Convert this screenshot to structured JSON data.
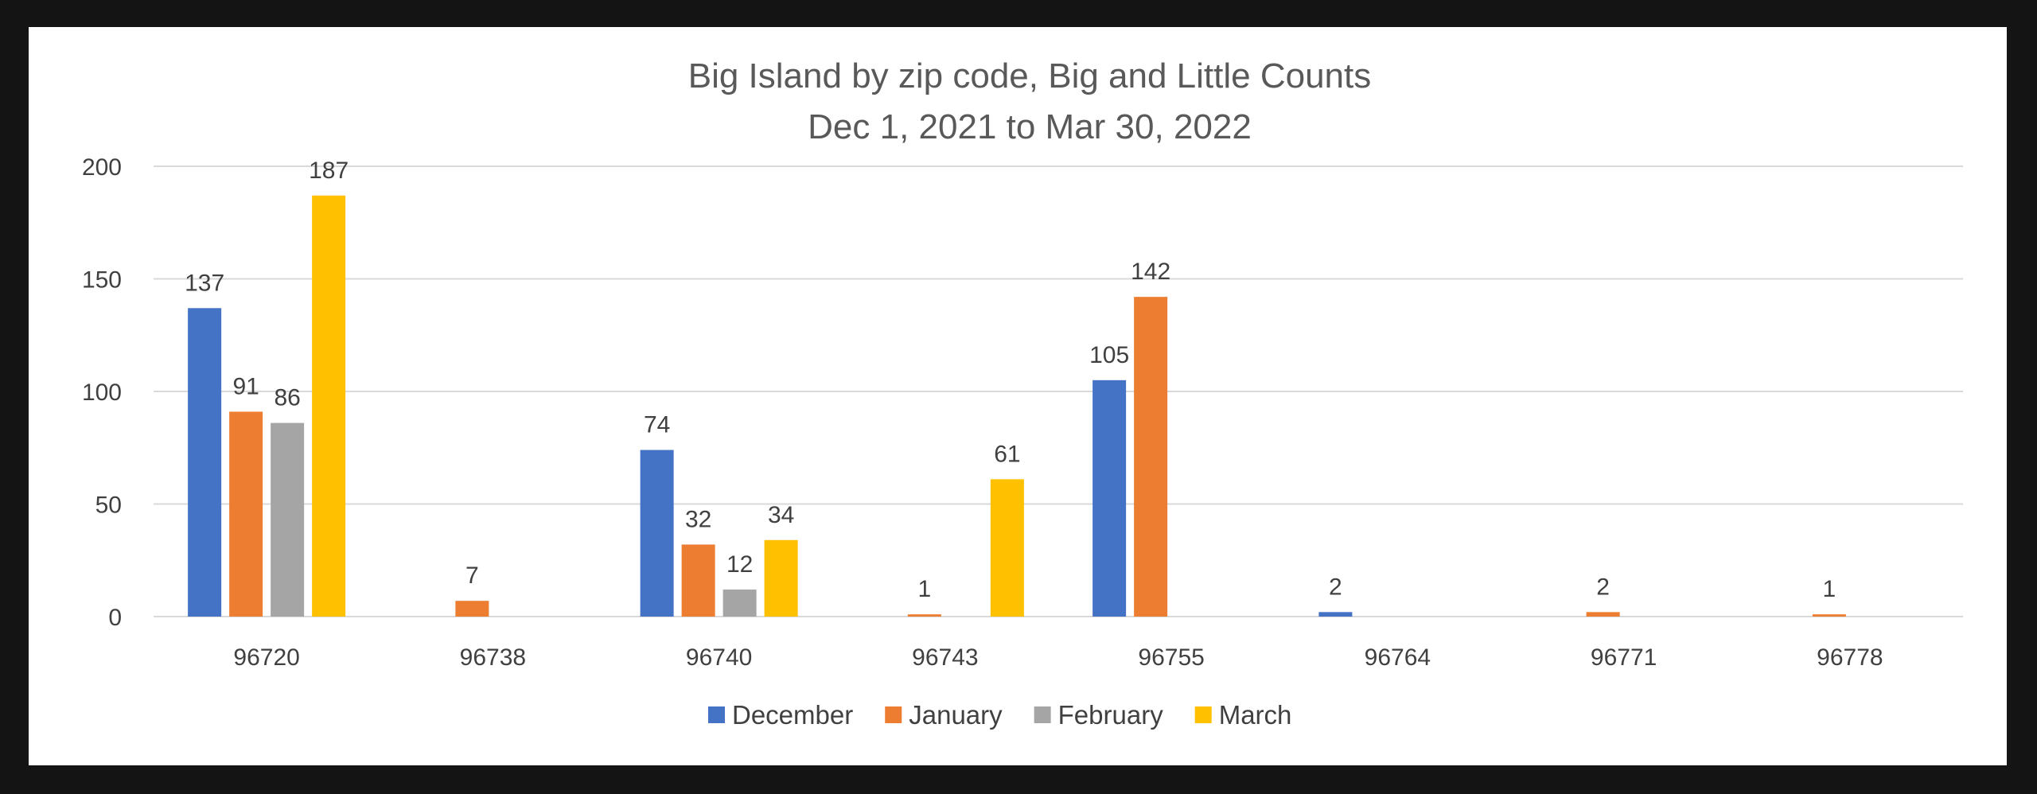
{
  "colors": {
    "frame": "#141414",
    "background": "#ffffff",
    "grid": "#d9d9d9",
    "text": "#404040",
    "title": "#595959"
  },
  "chart_data": {
    "type": "bar",
    "title": "Big Island by zip code, Big and Little Counts",
    "subtitle": "Dec 1, 2021 to Mar 30, 2022",
    "xlabel": "",
    "ylabel": "",
    "ylim": [
      0,
      200
    ],
    "yticks": [
      0,
      50,
      100,
      150,
      200
    ],
    "grid": true,
    "legend_position": "bottom",
    "categories": [
      "96720",
      "96738",
      "96740",
      "96743",
      "96755",
      "96764",
      "96771",
      "96778"
    ],
    "series": [
      {
        "name": "December",
        "color": "#4472c4",
        "values": [
          137,
          null,
          74,
          null,
          105,
          2,
          null,
          null
        ]
      },
      {
        "name": "January",
        "color": "#ed7d31",
        "values": [
          91,
          7,
          32,
          1,
          142,
          null,
          2,
          1
        ]
      },
      {
        "name": "February",
        "color": "#a5a5a5",
        "values": [
          86,
          null,
          12,
          null,
          null,
          null,
          null,
          null
        ]
      },
      {
        "name": "March",
        "color": "#ffc000",
        "values": [
          187,
          null,
          34,
          61,
          null,
          null,
          null,
          null
        ]
      }
    ]
  }
}
